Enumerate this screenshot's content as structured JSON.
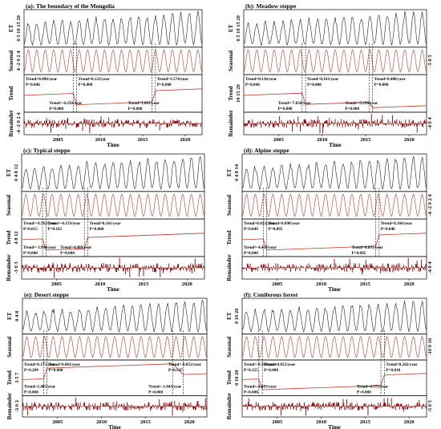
{
  "chart_data": [
    {
      "type": "line",
      "title": "(a): The boundary of the Mongolia",
      "ylabels": [
        "ET",
        "Seasonal",
        "Trend",
        "Remainder"
      ],
      "xlabel": "Time",
      "xticks": [
        "2005",
        "2010",
        "2015",
        "2020"
      ],
      "ytick_text": [
        "0 5 10 15 20",
        "4 -2 0 2 4",
        "",
        "-4 -2 0 2 4"
      ],
      "year_start": 2001,
      "year_end": 2022,
      "et_range": [
        0,
        20
      ],
      "trend_segments": [
        {
          "label": "Trend=0.096/year",
          "p": "P=0.046",
          "start": 2001,
          "end": 2006.8
        },
        {
          "label": "Trend=-4.250/year",
          "p": "P=0.000",
          "start": 2006.8,
          "end": 2007.2
        },
        {
          "label": "Trend=0.123/year",
          "p": "P=0.000",
          "start": 2007.2,
          "end": 2016.1
        },
        {
          "label": "Trend=3.683/year",
          "p": "P=0.000",
          "start": 2016.1,
          "end": 2016.5
        },
        {
          "label": "Trend=3.574/year",
          "p": "P=0.000",
          "start": 2016.5,
          "end": 2022
        }
      ]
    },
    {
      "type": "line",
      "title": "(b): Meadow steppe",
      "ylabels": [
        "ET",
        "Seasonal",
        "Trend",
        "Remainder"
      ],
      "xlabel": "Time",
      "xticks": [
        "2005",
        "2010",
        "2015",
        "2020"
      ],
      "ytick_text": [
        "0 5 10 15 20",
        "-5 0 5",
        "10 15 20",
        "-4 0 4"
      ],
      "year_start": 2001,
      "year_end": 2022,
      "et_range": [
        0,
        20
      ],
      "trend_segments": [
        {
          "label": "Trend=0.136/year",
          "p": "P=0.046",
          "start": 2001,
          "end": 2007.7
        },
        {
          "label": "Trend=-7.050/year",
          "p": "P=0.000",
          "start": 2007.7,
          "end": 2008.1
        },
        {
          "label": "Trend=0.161/year",
          "p": "P=0.000",
          "start": 2008.1,
          "end": 2015.4
        },
        {
          "label": "Trend=-5.290/year",
          "p": "P=0.000",
          "start": 2015.4,
          "end": 2015.8
        },
        {
          "label": "Trend=0.408/year",
          "p": "P=0.000",
          "start": 2015.8,
          "end": 2022
        }
      ]
    },
    {
      "type": "line",
      "title": "(c): Typical steppe",
      "ylabels": [
        "ET",
        "Seasonal",
        "Trend",
        "Remainder"
      ],
      "xlabel": "Time",
      "xticks": [
        "2005",
        "2010",
        "2015",
        "2020"
      ],
      "ytick_text": [
        "0 4 8 12",
        "",
        "4 8 12",
        "-3 0 3"
      ],
      "year_start": 2001,
      "year_end": 2022,
      "et_range": [
        0,
        12
      ],
      "trend_segments": [
        {
          "label": "Trend=-0.763/year",
          "p": "P=0.015",
          "start": 2001,
          "end": 2003.4
        },
        {
          "label": "Trend=-3.994/year",
          "p": "P=0.000",
          "start": 2003.4,
          "end": 2003.8
        },
        {
          "label": "Trend=-0.159/year",
          "p": "P=0.185",
          "start": 2003.8,
          "end": 2008.2
        },
        {
          "label": "Trend=4.088/year",
          "p": "P=0.000",
          "start": 2008.2,
          "end": 2008.6
        },
        {
          "label": "Trend=0.141/year",
          "p": "P=0.000",
          "start": 2008.6,
          "end": 2022
        }
      ]
    },
    {
      "type": "line",
      "title": "(d): Alpine steppe",
      "ylabels": [
        "ET",
        "Seasonal",
        "Trend",
        "Remainder"
      ],
      "xlabel": "Time",
      "xticks": [
        "2005",
        "2010",
        "2015",
        "2020"
      ],
      "ytick_text": [
        "0 4 8 14",
        "-4 -2 0 2 4",
        "",
        "-4 0 4"
      ],
      "year_start": 2001,
      "year_end": 2022,
      "et_range": [
        0,
        14
      ],
      "trend_segments": [
        {
          "label": "Trend=0.033/year",
          "p": "P=0.049",
          "start": 2001,
          "end": 2003.4
        },
        {
          "label": "Trend=-4.419/year",
          "p": "P=0.000",
          "start": 2003.4,
          "end": 2003.8
        },
        {
          "label": "Trend=0.098/year",
          "p": "P=0.095",
          "start": 2003.8,
          "end": 2016.2
        },
        {
          "label": "Trend=4.095/year",
          "p": "P=0.095",
          "start": 2016.2,
          "end": 2016.6
        },
        {
          "label": "Trend=0.166/year",
          "p": "P=0.046",
          "start": 2016.6,
          "end": 2022
        }
      ]
    },
    {
      "type": "line",
      "title": "(e): Desert steppe",
      "ylabels": [
        "ET",
        "Seasonal",
        "Trend",
        "Remainder"
      ],
      "xlabel": "Time",
      "xticks": [
        "2005",
        "2010",
        "2015",
        "2020"
      ],
      "ytick_text": [
        "0 4 8",
        "",
        "3 5 7",
        "-3 0 3"
      ],
      "year_start": 2001,
      "year_end": 2022,
      "et_range": [
        0,
        8
      ],
      "trend_segments": [
        {
          "label": "Trend=0.175/year",
          "p": "P=0.209",
          "start": 2001,
          "end": 2003.4
        },
        {
          "label": "Trend=2.405/year",
          "p": "P=0.000",
          "start": 2003.4,
          "end": 2003.8
        },
        {
          "label": "Trend=0.061/year",
          "p": "P=0.000",
          "start": 2003.8,
          "end": 2018.1
        },
        {
          "label": "Trend=-1.043/year",
          "p": "P=0.000",
          "start": 2018.1,
          "end": 2019.3
        },
        {
          "label": "Trend=-0.052/year",
          "p": "P=0.547",
          "start": 2019.3,
          "end": 2022
        }
      ]
    },
    {
      "type": "line",
      "title": "(f): Coniferous forest",
      "ylabels": [
        "ET",
        "Seasonal",
        "Trend",
        "Remainder"
      ],
      "xlabel": "Time",
      "xticks": [
        "2005",
        "2010",
        "2015",
        "2020"
      ],
      "ytick_text": [
        "0 10 20",
        "-10 0 10",
        "0 10 20",
        "-5 0 5"
      ],
      "year_start": 2001,
      "year_end": 2022,
      "et_range": [
        0,
        20
      ],
      "trend_segments": [
        {
          "label": "Trend=-0.364/year",
          "p": "P=0.155",
          "start": 2001,
          "end": 2002.9
        },
        {
          "label": "Trend=-4.083/year",
          "p": "P=0.000",
          "start": 2002.9,
          "end": 2003.3
        },
        {
          "label": "Trend=0.055/year",
          "p": "P=0.000",
          "start": 2003.3,
          "end": 2016.8
        },
        {
          "label": "Trend=4.572/year",
          "p": "P=0.000",
          "start": 2016.8,
          "end": 2017.2
        },
        {
          "label": "Trend=0.282/year",
          "p": "P=0.010",
          "start": 2017.2,
          "end": 2022
        }
      ]
    }
  ]
}
